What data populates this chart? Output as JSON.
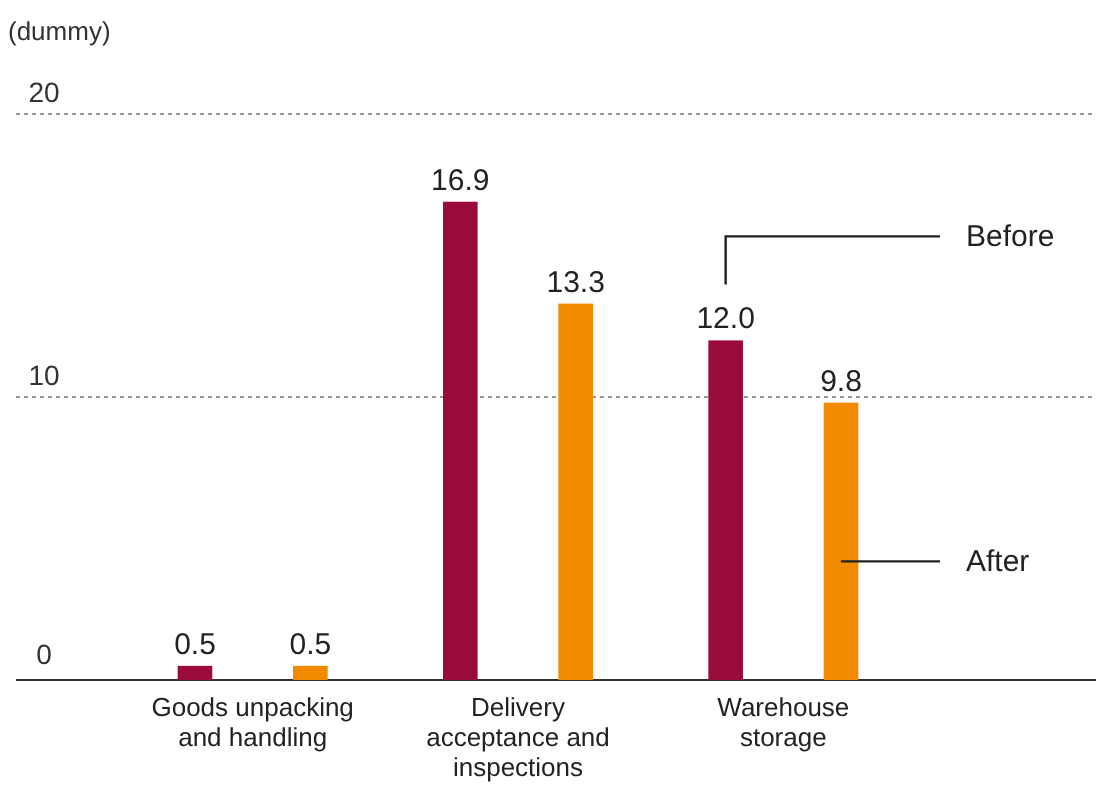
{
  "chart_data": {
    "type": "bar",
    "ylabel": "(dummy)",
    "categories": [
      "Goods unpacking and handling",
      "Delivery acceptance and inspections",
      "Warehouse storage"
    ],
    "series": [
      {
        "name": "Before",
        "color": "#9b0a3c",
        "values": [
          0.5,
          16.9,
          12
        ],
        "value_labels": [
          "0.5",
          "16.9",
          "12.0"
        ]
      },
      {
        "name": "After",
        "color": "#f28a00",
        "values": [
          0.5,
          13.3,
          9.8
        ],
        "value_labels": [
          "0.5",
          "13.3",
          "9.8"
        ]
      }
    ],
    "ylim": [
      0,
      20
    ],
    "yticks": [
      0,
      10,
      20
    ],
    "grid": "y",
    "legend": "right"
  }
}
